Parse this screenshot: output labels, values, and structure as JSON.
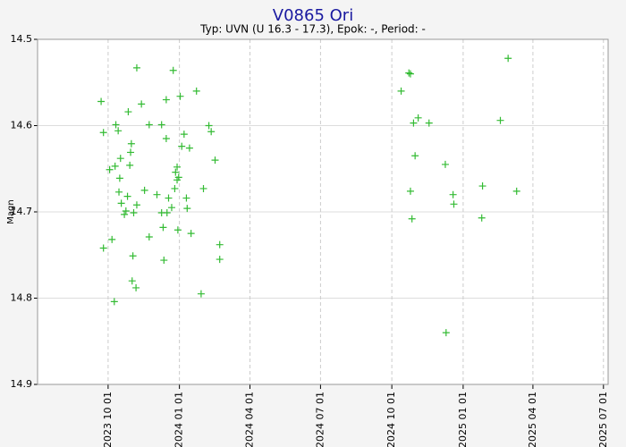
{
  "chart_data": {
    "type": "scatter",
    "title": "V0865 Ori",
    "subtitle": "Typ: UVN (U 16.3 - 17.3), Epok: -, Period: -",
    "y_label": "Magn",
    "color": "#33bb33",
    "invert_y": true,
    "grid": true,
    "ylim": [
      14.5,
      14.9
    ],
    "yticks": [
      14.5,
      14.6,
      14.7,
      14.8,
      14.9
    ],
    "xlim": [
      "2023 07 02",
      "2025 07 07"
    ],
    "xticks": [
      "2023 10 01",
      "2024 01 01",
      "2024 04 01",
      "2024 07 01",
      "2024 10 01",
      "2025 01 01",
      "2025 04 01",
      "2025 07 01"
    ],
    "x": [
      "2023 09 22",
      "2023 09 25",
      "2023 09 25",
      "2023 10 03",
      "2023 10 06",
      "2023 10 09",
      "2023 10 10",
      "2023 10 11",
      "2023 10 14",
      "2023 10 15",
      "2023 10 16",
      "2023 10 17",
      "2023 10 18",
      "2023 10 22",
      "2023 10 24",
      "2023 10 26",
      "2023 10 27",
      "2023 10 29",
      "2023 10 30",
      "2023 10 31",
      "2023 11 01",
      "2023 11 02",
      "2023 11 03",
      "2023 11 06",
      "2023 11 07",
      "2023 11 07",
      "2023 11 13",
      "2023 11 17",
      "2023 11 23",
      "2023 11 23",
      "2023 12 03",
      "2023 12 09",
      "2023 12 09",
      "2023 12 11",
      "2023 12 12",
      "2023 12 15",
      "2023 12 15",
      "2023 12 16",
      "2023 12 18",
      "2023 12 22",
      "2023 12 24",
      "2023 12 26",
      "2023 12 27",
      "2023 12 29",
      "2023 12 29",
      "2023 12 30",
      "2023 12 31",
      "2024 01 02",
      "2024 01 04",
      "2024 01 07",
      "2024 01 10",
      "2024 01 11",
      "2024 01 14",
      "2024 01 16",
      "2024 01 23",
      "2024 01 29",
      "2024 02 01",
      "2024 02 08",
      "2024 02 11",
      "2024 02 16",
      "2024 02 22",
      "2024 02 22",
      "2024 10 13",
      "2024 10 23",
      "2024 10 25",
      "2024 10 25",
      "2024 10 27",
      "2024 10 29",
      "2024 10 31",
      "2024 11 04",
      "2024 11 18",
      "2024 12 09",
      "2024 12 10",
      "2024 12 19",
      "2024 12 20",
      "2025 01 25",
      "2025 01 26",
      "2025 02 18",
      "2025 02 28",
      "2025 03 11"
    ],
    "values": [
      14.572,
      14.608,
      14.742,
      14.651,
      14.732,
      14.804,
      14.647,
      14.599,
      14.606,
      14.677,
      14.661,
      14.638,
      14.69,
      14.703,
      14.699,
      14.682,
      14.584,
      14.646,
      14.631,
      14.621,
      14.78,
      14.751,
      14.701,
      14.788,
      14.533,
      14.692,
      14.575,
      14.675,
      14.599,
      14.729,
      14.68,
      14.599,
      14.701,
      14.718,
      14.756,
      14.57,
      14.615,
      14.701,
      14.684,
      14.695,
      14.536,
      14.673,
      14.654,
      14.648,
      14.663,
      14.721,
      14.66,
      14.566,
      14.624,
      14.61,
      14.684,
      14.696,
      14.626,
      14.725,
      14.56,
      14.795,
      14.673,
      14.6,
      14.607,
      14.64,
      14.738,
      14.755,
      14.56,
      14.539,
      14.54,
      14.676,
      14.708,
      14.597,
      14.635,
      14.591,
      14.597,
      14.645,
      14.84,
      14.68,
      14.691,
      14.707,
      14.67,
      14.594,
      14.522,
      14.676
    ]
  }
}
